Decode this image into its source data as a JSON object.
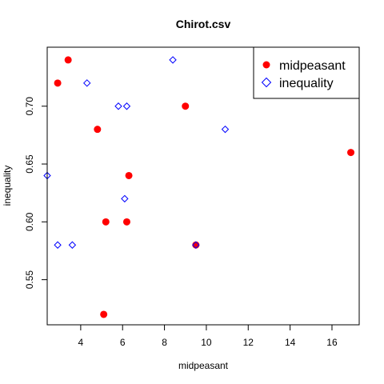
{
  "chart_data": {
    "type": "scatter",
    "title": "Chirot.csv",
    "xlabel": "midpeasant",
    "ylabel": "inequality",
    "xlim": [
      2.4,
      17.3
    ],
    "ylim": [
      0.511,
      0.751
    ],
    "x_ticks": [
      4,
      6,
      8,
      10,
      12,
      14,
      16
    ],
    "y_ticks": [
      0.55,
      0.6,
      0.65,
      0.7
    ],
    "legend_position": "top-right",
    "series": [
      {
        "name": "midpeasant",
        "marker": "filled-circle",
        "color": "#ff0000",
        "points": [
          {
            "x": 3.4,
            "y": 0.74
          },
          {
            "x": 2.9,
            "y": 0.72
          },
          {
            "x": 4.8,
            "y": 0.68
          },
          {
            "x": 9.0,
            "y": 0.7
          },
          {
            "x": 6.3,
            "y": 0.64
          },
          {
            "x": 5.2,
            "y": 0.6
          },
          {
            "x": 6.2,
            "y": 0.6
          },
          {
            "x": 9.5,
            "y": 0.58
          },
          {
            "x": 5.1,
            "y": 0.52
          },
          {
            "x": 16.9,
            "y": 0.66
          }
        ]
      },
      {
        "name": "inequality",
        "marker": "open-diamond",
        "color": "#0000ff",
        "points": [
          {
            "x": 8.4,
            "y": 0.74
          },
          {
            "x": 4.3,
            "y": 0.72
          },
          {
            "x": 5.8,
            "y": 0.7
          },
          {
            "x": 6.2,
            "y": 0.7
          },
          {
            "x": 10.9,
            "y": 0.68
          },
          {
            "x": 2.4,
            "y": 0.64
          },
          {
            "x": 6.1,
            "y": 0.62
          },
          {
            "x": 2.9,
            "y": 0.58
          },
          {
            "x": 3.6,
            "y": 0.58
          },
          {
            "x": 9.5,
            "y": 0.58
          }
        ]
      }
    ]
  }
}
